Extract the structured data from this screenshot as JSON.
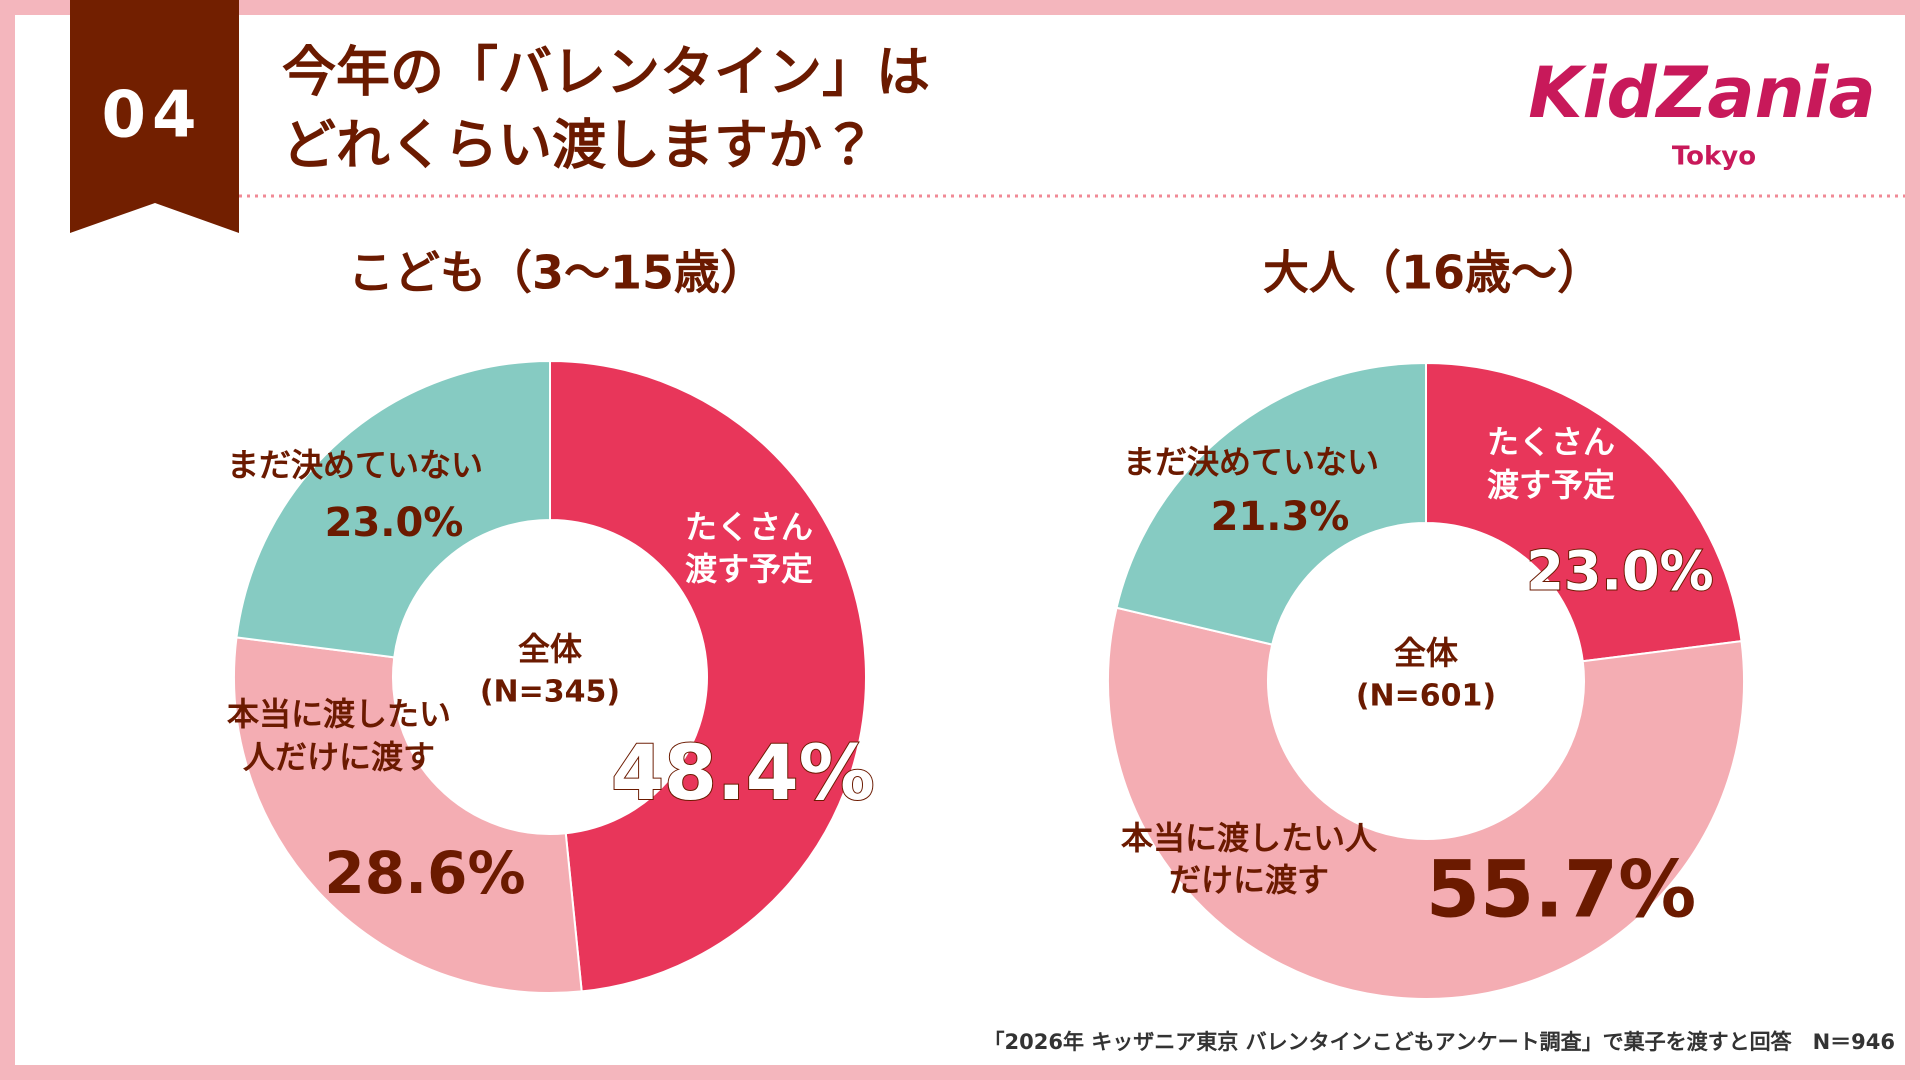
{
  "header": {
    "number": "04",
    "title_lines": [
      "今年の「バレンタイン」は",
      "どれくらい渡しますか？"
    ],
    "logo": "KidZania",
    "logo_sub": "Tokyo"
  },
  "chart_data": [
    {
      "type": "donut",
      "title": "こども（3～15歳）",
      "center_label": "全体",
      "center_sub": "(N=345)",
      "categories": [
        [
          "たくさん",
          "渡す予定"
        ],
        [
          "本当に渡したい",
          "人だけに渡す"
        ],
        [
          "まだ決めていない"
        ]
      ],
      "values": [
        48.4,
        28.6,
        23.0
      ],
      "value_labels": [
        "48.4%",
        "28.6%",
        "23.0%"
      ],
      "colors": [
        "#e8365a",
        "#f4adb3",
        "#86cbc2"
      ]
    },
    {
      "type": "donut",
      "title": "大人（16歳～）",
      "center_label": "全体",
      "center_sub": "(N=601)",
      "categories": [
        [
          "たくさん",
          "渡す予定"
        ],
        [
          "本当に渡したい人",
          "だけに渡す"
        ],
        [
          "まだ決めていない"
        ]
      ],
      "values": [
        23.0,
        55.7,
        21.3
      ],
      "value_labels": [
        "23.0%",
        "55.7%",
        "21.3%"
      ],
      "colors": [
        "#e8365a",
        "#f4adb3",
        "#86cbc2"
      ]
    }
  ],
  "footnote": "「2026年 キッザニア東京 バレンタインこどもアンケート調査」で菓子を渡すと回答　N＝946"
}
